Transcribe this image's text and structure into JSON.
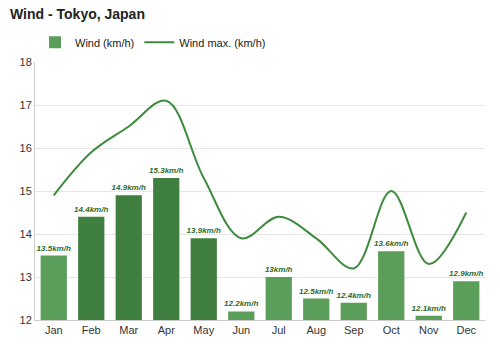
{
  "chart_data": {
    "type": "bar",
    "title": "Wind - Tokyo, Japan",
    "categories": [
      "Jan",
      "Feb",
      "Mar",
      "Apr",
      "May",
      "Jun",
      "Jul",
      "Aug",
      "Sep",
      "Oct",
      "Nov",
      "Dec"
    ],
    "series": [
      {
        "name": "Wind (km/h)",
        "type": "bar",
        "color": "#5a9e5a",
        "colors": [
          "#5a9e5a",
          "#3f7f3f",
          "#3f7f3f",
          "#3f7f3f",
          "#3f7f3f",
          "#5a9e5a",
          "#5a9e5a",
          "#5a9e5a",
          "#5a9e5a",
          "#5a9e5a",
          "#5a9e5a",
          "#5a9e5a"
        ],
        "values": [
          13.5,
          14.4,
          14.9,
          15.3,
          13.9,
          12.2,
          13,
          12.5,
          12.4,
          13.6,
          12.1,
          12.9
        ],
        "value_labels": [
          "13.5km/h",
          "14.4km/h",
          "14.9km/h",
          "15.3km/h",
          "13.9km/h",
          "12.2km/h",
          "13km/h",
          "12.5km/h",
          "12.4km/h",
          "13.6km/h",
          "12.1km/h",
          "12.9km/h"
        ],
        "data_labels": true
      },
      {
        "name": "Wind max. (km/h)",
        "type": "line",
        "color": "#3d8b3d",
        "line_style": "solid",
        "values": [
          14.9,
          15.9,
          16.5,
          17.1,
          15.3,
          13.9,
          14.4,
          13.9,
          13.2,
          15.0,
          13.3,
          14.5
        ]
      }
    ],
    "ylim": [
      12,
      18
    ],
    "yticks": [
      12,
      13,
      14,
      15,
      16,
      17,
      18
    ],
    "grid": true,
    "legend": "upper left"
  }
}
